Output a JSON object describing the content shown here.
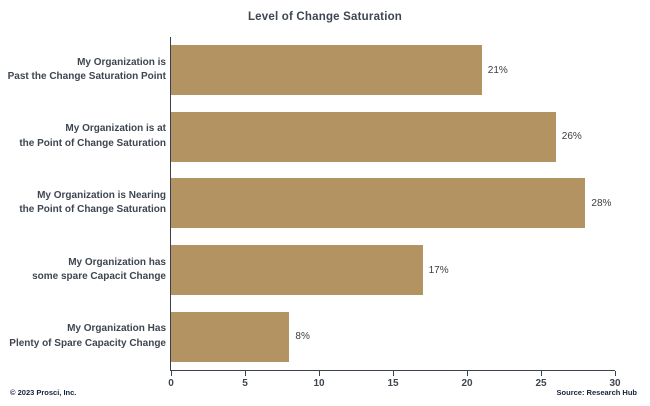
{
  "title": "Level of Change Saturation",
  "footer": {
    "left": "© 2023 Prosci, Inc.",
    "right": "Source: Research Hub"
  },
  "chart_data": {
    "type": "bar",
    "orientation": "horizontal",
    "title": "Level of Change Saturation",
    "categories": [
      [
        "My Organization is",
        "Past the Change Saturation Point"
      ],
      [
        "My Organization is at",
        "the Point of Change Saturation"
      ],
      [
        "My Organization is Nearing",
        "the Point of Change Saturation"
      ],
      [
        "My Organization has",
        "some spare Capacit Change"
      ],
      [
        "My Organization Has",
        "Plenty of Spare Capacity Change"
      ]
    ],
    "values": [
      21,
      26,
      28,
      17,
      8
    ],
    "value_labels": [
      "21%",
      "26%",
      "28%",
      "17%",
      "8%"
    ],
    "xlabel": "",
    "ylabel": "",
    "xlim": [
      0,
      30
    ],
    "xticks": [
      0,
      5,
      10,
      15,
      20,
      25,
      30
    ],
    "grid": false,
    "legend": false,
    "bar_color": "#b29361",
    "axis_color": "#39414d",
    "label_color": "#3e4651",
    "value_label_color": "#3d3d3d"
  }
}
